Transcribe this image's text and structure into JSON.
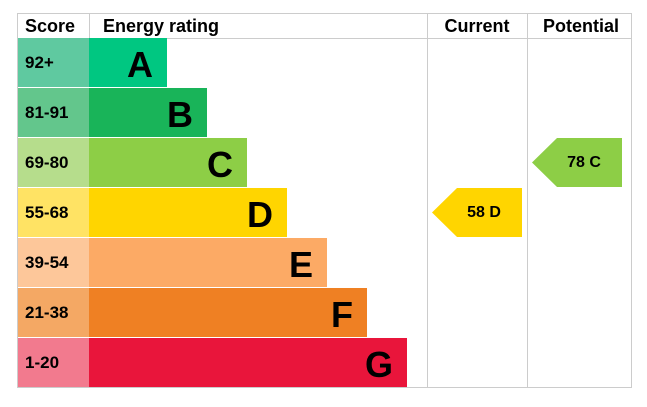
{
  "header": {
    "score": "Score",
    "rating": "Energy rating",
    "current": "Current",
    "potential": "Potential"
  },
  "bands": [
    {
      "score": "92+",
      "letter": "A"
    },
    {
      "score": "81-91",
      "letter": "B"
    },
    {
      "score": "69-80",
      "letter": "C"
    },
    {
      "score": "55-68",
      "letter": "D"
    },
    {
      "score": "39-54",
      "letter": "E"
    },
    {
      "score": "21-38",
      "letter": "F"
    },
    {
      "score": "1-20",
      "letter": "G"
    }
  ],
  "current": {
    "label": "58 D"
  },
  "potential": {
    "label": "78 C"
  }
}
